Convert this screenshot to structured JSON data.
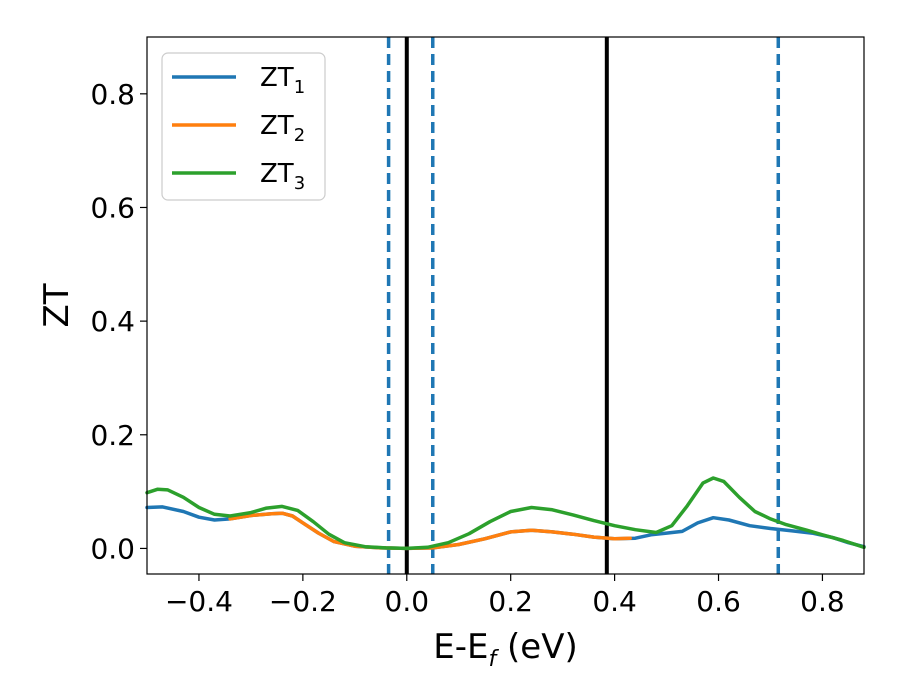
{
  "chart_data": {
    "type": "line",
    "xlabel": {
      "main": "E-E",
      "sub": "f",
      "suffix": " (eV)"
    },
    "ylabel": "ZT",
    "xlim": [
      -0.5,
      0.88
    ],
    "ylim": [
      -0.045,
      0.9
    ],
    "x_ticks": [
      -0.4,
      -0.2,
      0.0,
      0.2,
      0.4,
      0.6,
      0.8
    ],
    "x_tick_labels": [
      "−0.4",
      "−0.2",
      "0.0",
      "0.2",
      "0.4",
      "0.6",
      "0.8"
    ],
    "y_ticks": [
      0.0,
      0.2,
      0.4,
      0.6,
      0.8
    ],
    "y_tick_labels": [
      "0.0",
      "0.2",
      "0.4",
      "0.6",
      "0.8"
    ],
    "grid": false,
    "legend_position": "top-left",
    "series": [
      {
        "name": "ZT₁",
        "name_main": "ZT",
        "name_sub": "1",
        "color": "#1f77b4",
        "points": [
          [
            -0.5,
            0.072
          ],
          [
            -0.47,
            0.073
          ],
          [
            -0.43,
            0.065
          ],
          [
            -0.4,
            0.055
          ],
          [
            -0.37,
            0.05
          ],
          [
            -0.34,
            0.052
          ],
          [
            -0.3,
            0.058
          ],
          [
            -0.26,
            0.061
          ],
          [
            -0.24,
            0.062
          ],
          [
            -0.22,
            0.057
          ],
          [
            -0.2,
            0.045
          ],
          [
            -0.17,
            0.027
          ],
          [
            -0.14,
            0.012
          ],
          [
            -0.1,
            0.004
          ],
          [
            -0.05,
            0.001
          ],
          [
            0.0,
            0.0
          ],
          [
            0.05,
            0.001
          ],
          [
            0.1,
            0.007
          ],
          [
            0.15,
            0.017
          ],
          [
            0.2,
            0.029
          ],
          [
            0.24,
            0.032
          ],
          [
            0.28,
            0.029
          ],
          [
            0.32,
            0.025
          ],
          [
            0.36,
            0.02
          ],
          [
            0.4,
            0.017
          ],
          [
            0.44,
            0.018
          ],
          [
            0.47,
            0.024
          ],
          [
            0.5,
            0.027
          ],
          [
            0.53,
            0.03
          ],
          [
            0.56,
            0.045
          ],
          [
            0.59,
            0.054
          ],
          [
            0.62,
            0.05
          ],
          [
            0.66,
            0.04
          ],
          [
            0.7,
            0.035
          ],
          [
            0.74,
            0.031
          ],
          [
            0.78,
            0.027
          ],
          [
            0.82,
            0.019
          ],
          [
            0.85,
            0.01
          ],
          [
            0.88,
            0.003
          ]
        ]
      },
      {
        "name": "ZT₂",
        "name_main": "ZT",
        "name_sub": "2",
        "color": "#ff7f0e",
        "points": [
          [
            -0.34,
            0.052
          ],
          [
            -0.3,
            0.058
          ],
          [
            -0.26,
            0.061
          ],
          [
            -0.24,
            0.062
          ],
          [
            -0.22,
            0.057
          ],
          [
            -0.2,
            0.045
          ],
          [
            -0.17,
            0.027
          ],
          [
            -0.14,
            0.012
          ],
          [
            -0.1,
            0.004
          ],
          [
            -0.05,
            0.001
          ],
          [
            0.0,
            0.0
          ],
          [
            0.05,
            0.001
          ],
          [
            0.1,
            0.007
          ],
          [
            0.15,
            0.017
          ],
          [
            0.2,
            0.029
          ],
          [
            0.24,
            0.032
          ],
          [
            0.28,
            0.029
          ],
          [
            0.32,
            0.025
          ],
          [
            0.36,
            0.02
          ],
          [
            0.4,
            0.017
          ],
          [
            0.43,
            0.018
          ]
        ]
      },
      {
        "name": "ZT₃",
        "name_main": "ZT",
        "name_sub": "3",
        "color": "#2ca02c",
        "points": [
          [
            -0.5,
            0.098
          ],
          [
            -0.48,
            0.104
          ],
          [
            -0.46,
            0.103
          ],
          [
            -0.43,
            0.09
          ],
          [
            -0.4,
            0.072
          ],
          [
            -0.37,
            0.06
          ],
          [
            -0.34,
            0.057
          ],
          [
            -0.3,
            0.063
          ],
          [
            -0.27,
            0.071
          ],
          [
            -0.24,
            0.074
          ],
          [
            -0.21,
            0.067
          ],
          [
            -0.18,
            0.047
          ],
          [
            -0.15,
            0.025
          ],
          [
            -0.12,
            0.01
          ],
          [
            -0.08,
            0.003
          ],
          [
            -0.04,
            0.001
          ],
          [
            0.0,
            0.0
          ],
          [
            0.04,
            0.002
          ],
          [
            0.08,
            0.01
          ],
          [
            0.12,
            0.026
          ],
          [
            0.16,
            0.047
          ],
          [
            0.2,
            0.065
          ],
          [
            0.24,
            0.072
          ],
          [
            0.28,
            0.068
          ],
          [
            0.32,
            0.059
          ],
          [
            0.36,
            0.049
          ],
          [
            0.4,
            0.04
          ],
          [
            0.44,
            0.033
          ],
          [
            0.48,
            0.028
          ],
          [
            0.51,
            0.04
          ],
          [
            0.54,
            0.075
          ],
          [
            0.57,
            0.115
          ],
          [
            0.59,
            0.124
          ],
          [
            0.61,
            0.118
          ],
          [
            0.64,
            0.09
          ],
          [
            0.67,
            0.065
          ],
          [
            0.7,
            0.052
          ],
          [
            0.73,
            0.042
          ],
          [
            0.77,
            0.032
          ],
          [
            0.8,
            0.024
          ],
          [
            0.84,
            0.014
          ],
          [
            0.88,
            0.002
          ]
        ]
      }
    ],
    "vlines": [
      {
        "x": -0.035,
        "style": "dashed",
        "color": "#1f77b4"
      },
      {
        "x": 0.0,
        "style": "solid",
        "color": "#000000"
      },
      {
        "x": 0.05,
        "style": "dashed",
        "color": "#1f77b4"
      },
      {
        "x": 0.385,
        "style": "solid",
        "color": "#000000"
      },
      {
        "x": 0.715,
        "style": "dashed",
        "color": "#1f77b4"
      }
    ]
  }
}
